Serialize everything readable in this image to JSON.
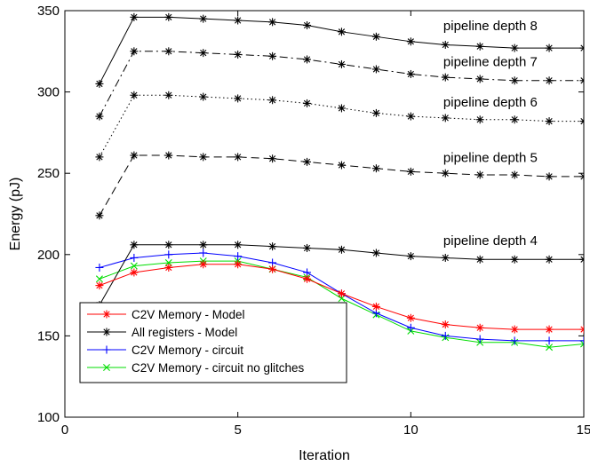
{
  "chart_data": {
    "type": "line",
    "title": "",
    "xlabel": "Iteration",
    "ylabel": "Energy (pJ)",
    "xlim": [
      0,
      15
    ],
    "ylim": [
      100,
      350
    ],
    "xticks": [
      0,
      5,
      10,
      15
    ],
    "yticks": [
      100,
      150,
      200,
      250,
      300,
      350
    ],
    "grid": false,
    "legend_position": "bottom-left",
    "x": [
      1,
      2,
      3,
      4,
      5,
      6,
      7,
      8,
      9,
      10,
      11,
      12,
      13,
      14,
      15
    ],
    "series": [
      {
        "name": "C2V Memory - Model",
        "color": "#ff0000",
        "marker": "asterisk",
        "dash": "solid",
        "in_legend": true,
        "values": [
          181,
          189,
          192,
          194,
          194,
          191,
          185,
          176,
          168,
          161,
          157,
          155,
          154,
          154,
          154
        ]
      },
      {
        "name": "All registers - Model",
        "color": "#000000",
        "marker": "asterisk",
        "dash": "solid",
        "in_legend": true,
        "values": [
          169,
          206,
          206,
          206,
          206,
          205,
          204,
          203,
          201,
          199,
          198,
          197,
          197,
          197,
          197
        ]
      },
      {
        "name": "C2V Memory - circuit",
        "color": "#0000ff",
        "marker": "plus",
        "dash": "solid",
        "in_legend": true,
        "values": [
          192,
          198,
          200,
          201,
          199,
          195,
          189,
          176,
          164,
          155,
          150,
          148,
          147,
          147,
          147
        ]
      },
      {
        "name": "C2V Memory - circuit no glitches",
        "color": "#00dd00",
        "marker": "x",
        "dash": "solid",
        "in_legend": true,
        "values": [
          185,
          193,
          195,
          196,
          196,
          191,
          186,
          173,
          163,
          153,
          149,
          146,
          146,
          143,
          145
        ]
      },
      {
        "name": "",
        "color": "#000000",
        "marker": "asterisk",
        "dash": "dashed",
        "in_legend": false,
        "values": [
          224,
          261,
          261,
          260,
          260,
          259,
          257,
          255,
          253,
          251,
          250,
          249,
          249,
          248,
          248
        ]
      },
      {
        "name": "",
        "color": "#000000",
        "marker": "asterisk",
        "dash": "dotted",
        "in_legend": false,
        "values": [
          260,
          298,
          298,
          297,
          296,
          295,
          293,
          290,
          287,
          285,
          284,
          283,
          283,
          282,
          282
        ]
      },
      {
        "name": "",
        "color": "#000000",
        "marker": "asterisk",
        "dash": "dashdot",
        "in_legend": false,
        "values": [
          285,
          325,
          325,
          324,
          323,
          322,
          320,
          317,
          314,
          311,
          309,
          308,
          307,
          307,
          307
        ]
      },
      {
        "name": "",
        "color": "#000000",
        "marker": "asterisk",
        "dash": "solid",
        "in_legend": false,
        "values": [
          305,
          346,
          346,
          345,
          344,
          343,
          341,
          337,
          334,
          331,
          329,
          328,
          327,
          327,
          327
        ]
      }
    ],
    "annotations": [
      {
        "text": "pipeline depth 8",
        "x": 12.3,
        "y": 338
      },
      {
        "text": "pipeline depth 7",
        "x": 12.3,
        "y": 316
      },
      {
        "text": "pipeline depth 6",
        "x": 12.3,
        "y": 291
      },
      {
        "text": "pipeline depth 5",
        "x": 12.3,
        "y": 257
      },
      {
        "text": "pipeline depth 4",
        "x": 12.3,
        "y": 206
      }
    ]
  }
}
